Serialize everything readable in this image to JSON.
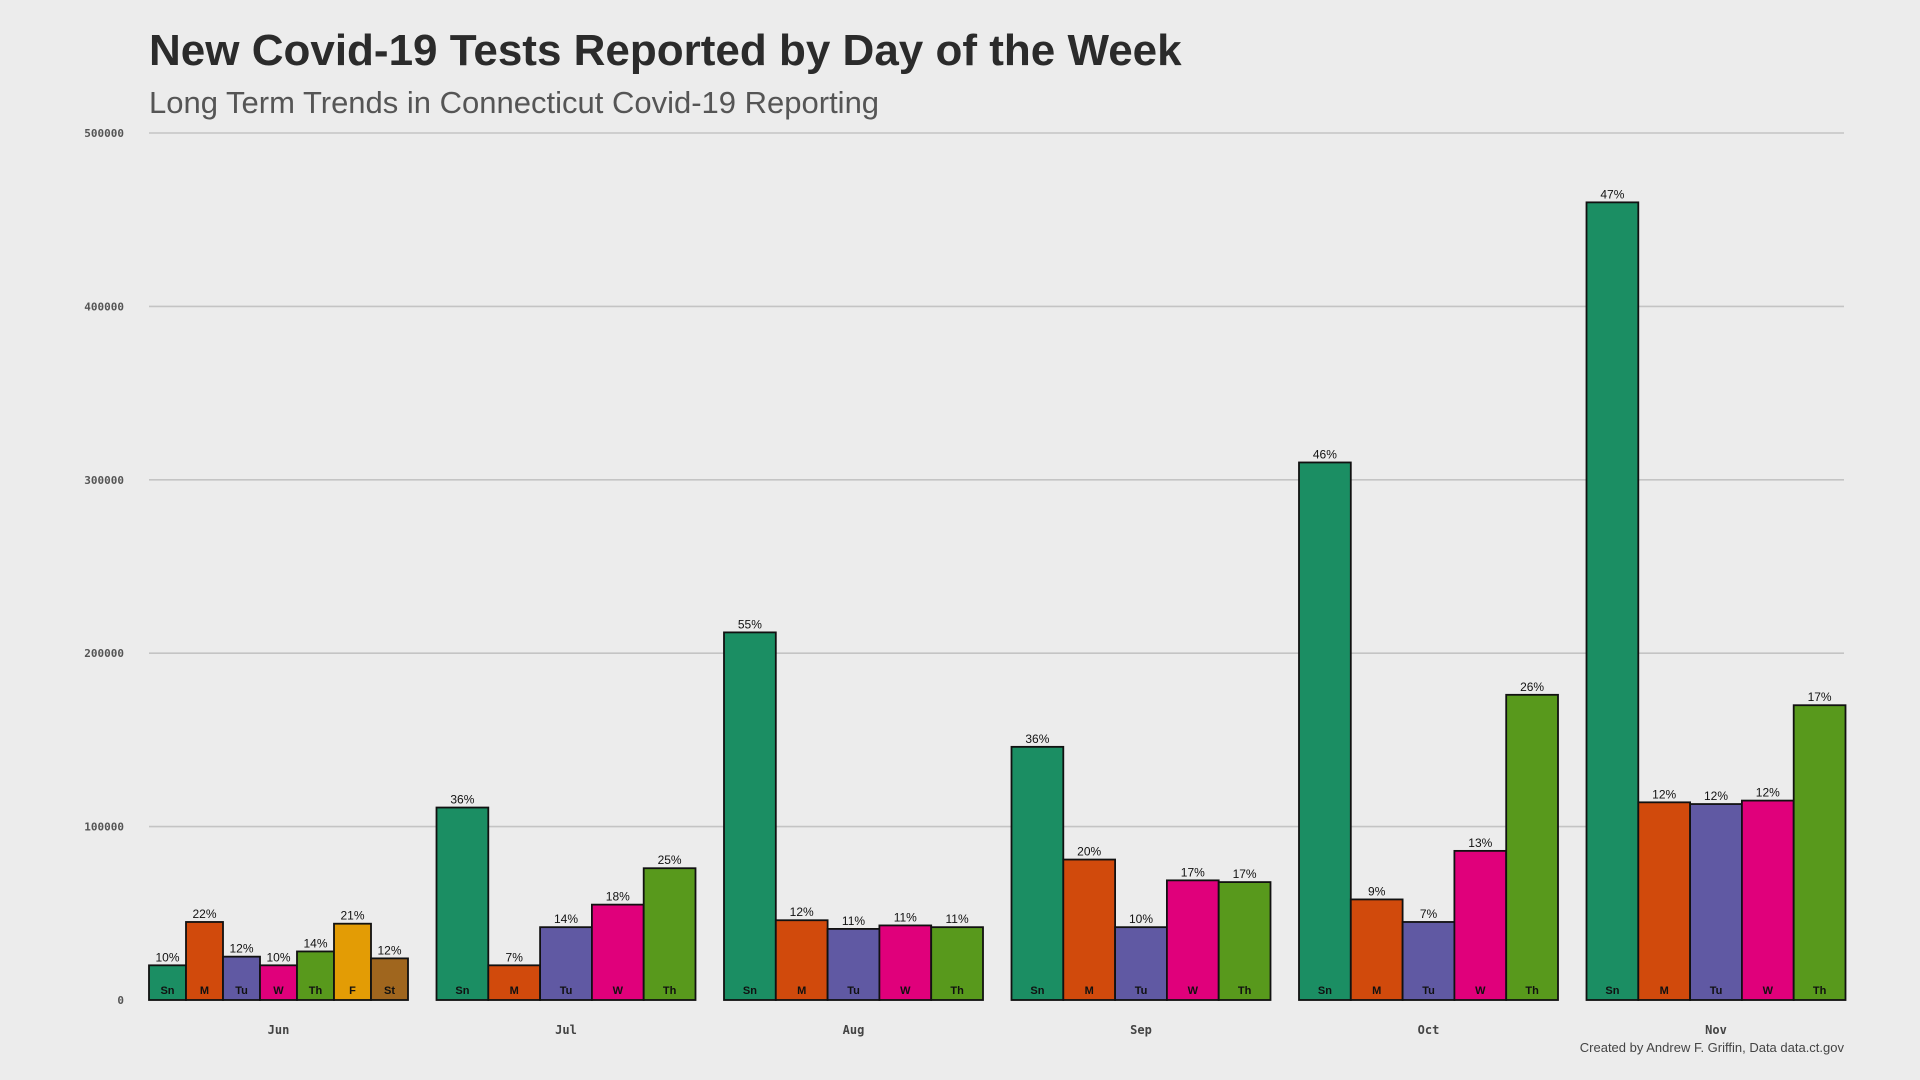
{
  "title": "New Covid-19 Tests Reported by Day of the Week",
  "subtitle": "Long Term Trends in Connecticut Covid-19 Reporting",
  "caption": "Created by Andrew F. Griffin, Data data.ct.gov",
  "chart_data": {
    "type": "bar",
    "title": "New Covid-19 Tests Reported by Day of the Week",
    "subtitle": "Long Term Trends in Connecticut Covid-19 Reporting",
    "xlabel": "",
    "ylabel": "",
    "ylim": [
      0,
      500000
    ],
    "yticks": [
      "0",
      "100000",
      "200000",
      "300000",
      "400000",
      "500000"
    ],
    "grid": true,
    "day_colors": {
      "Sn": "#1b8e63",
      "M": "#d14a0c",
      "Tu": "#6059a3",
      "W": "#e0007b",
      "Th": "#58991c",
      "F": "#e39c05",
      "St": "#a0661e"
    },
    "groups": [
      {
        "month": "Jun",
        "bars": [
          {
            "day": "Sn",
            "value": 20000,
            "label": "10%"
          },
          {
            "day": "M",
            "value": 45000,
            "label": "22%"
          },
          {
            "day": "Tu",
            "value": 25000,
            "label": "12%"
          },
          {
            "day": "W",
            "value": 20000,
            "label": "10%"
          },
          {
            "day": "Th",
            "value": 28000,
            "label": "14%"
          },
          {
            "day": "F",
            "value": 44000,
            "label": "21%"
          },
          {
            "day": "St",
            "value": 24000,
            "label": "12%"
          }
        ]
      },
      {
        "month": "Jul",
        "bars": [
          {
            "day": "Sn",
            "value": 111000,
            "label": "36%"
          },
          {
            "day": "M",
            "value": 20000,
            "label": "7%"
          },
          {
            "day": "Tu",
            "value": 42000,
            "label": "14%"
          },
          {
            "day": "W",
            "value": 55000,
            "label": "18%"
          },
          {
            "day": "Th",
            "value": 76000,
            "label": "25%"
          }
        ]
      },
      {
        "month": "Aug",
        "bars": [
          {
            "day": "Sn",
            "value": 212000,
            "label": "55%"
          },
          {
            "day": "M",
            "value": 46000,
            "label": "12%"
          },
          {
            "day": "Tu",
            "value": 41000,
            "label": "11%"
          },
          {
            "day": "W",
            "value": 43000,
            "label": "11%"
          },
          {
            "day": "Th",
            "value": 42000,
            "label": "11%"
          }
        ]
      },
      {
        "month": "Sep",
        "bars": [
          {
            "day": "Sn",
            "value": 146000,
            "label": "36%"
          },
          {
            "day": "M",
            "value": 81000,
            "label": "20%"
          },
          {
            "day": "Tu",
            "value": 42000,
            "label": "10%"
          },
          {
            "day": "W",
            "value": 69000,
            "label": "17%"
          },
          {
            "day": "Th",
            "value": 68000,
            "label": "17%"
          }
        ]
      },
      {
        "month": "Oct",
        "bars": [
          {
            "day": "Sn",
            "value": 310000,
            "label": "46%"
          },
          {
            "day": "M",
            "value": 58000,
            "label": "9%"
          },
          {
            "day": "Tu",
            "value": 45000,
            "label": "7%"
          },
          {
            "day": "W",
            "value": 86000,
            "label": "13%"
          },
          {
            "day": "Th",
            "value": 176000,
            "label": "26%"
          }
        ]
      },
      {
        "month": "Nov",
        "bars": [
          {
            "day": "Sn",
            "value": 460000,
            "label": "47%"
          },
          {
            "day": "M",
            "value": 114000,
            "label": "12%"
          },
          {
            "day": "Tu",
            "value": 113000,
            "label": "12%"
          },
          {
            "day": "W",
            "value": 115000,
            "label": "12%"
          },
          {
            "day": "Th",
            "value": 170000,
            "label": "17%"
          }
        ]
      }
    ]
  }
}
